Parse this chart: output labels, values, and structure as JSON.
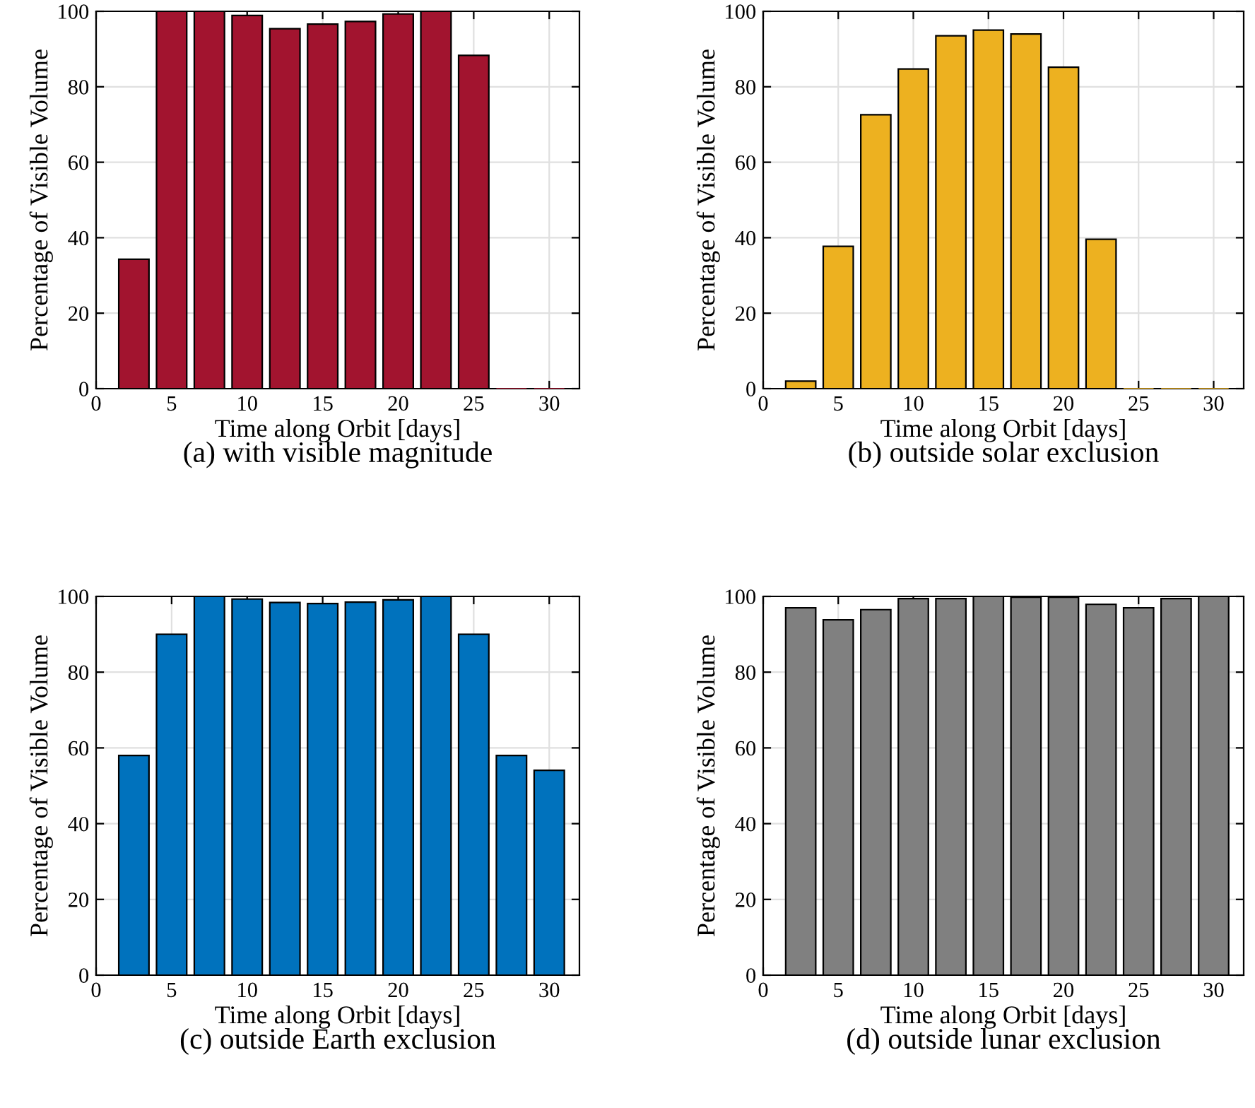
{
  "chart_data": [
    {
      "type": "bar",
      "x": [
        2.5,
        5,
        7.5,
        10,
        12.5,
        15,
        17.5,
        20,
        22.5,
        25,
        27.5,
        30
      ],
      "values": [
        34.3,
        100,
        100,
        98.9,
        95.4,
        96.6,
        97.3,
        99.3,
        100,
        88.3,
        0,
        0
      ],
      "color": "#a2142f",
      "xlabel": "Time along Orbit [days]",
      "ylabel": "Percentage of Visible Volume",
      "xlim": [
        0,
        32
      ],
      "ylim": [
        0,
        100
      ],
      "xticks": [
        0,
        5,
        10,
        15,
        20,
        25,
        30
      ],
      "yticks": [
        0,
        20,
        40,
        60,
        80,
        100
      ],
      "grid": true,
      "annotations": [
        "(a) with visible magnitude"
      ]
    },
    {
      "type": "bar",
      "x": [
        2.5,
        5,
        7.5,
        10,
        12.5,
        15,
        17.5,
        20,
        22.5,
        25,
        27.5,
        30
      ],
      "values": [
        2.0,
        37.7,
        72.6,
        84.7,
        93.5,
        95.0,
        94.0,
        85.2,
        39.6,
        0,
        0,
        0
      ],
      "color": "#edb120",
      "xlabel": "Time along Orbit [days]",
      "ylabel": "Percentage of Visible Volume",
      "xlim": [
        0,
        32
      ],
      "ylim": [
        0,
        100
      ],
      "xticks": [
        0,
        5,
        10,
        15,
        20,
        25,
        30
      ],
      "yticks": [
        0,
        20,
        40,
        60,
        80,
        100
      ],
      "grid": true,
      "annotations": [
        "(b) outside solar exclusion"
      ]
    },
    {
      "type": "bar",
      "x": [
        2.5,
        5,
        7.5,
        10,
        12.5,
        15,
        17.5,
        20,
        22.5,
        25,
        27.5,
        30
      ],
      "values": [
        58,
        90,
        100,
        99.3,
        98.4,
        98.1,
        98.5,
        99.1,
        100,
        90,
        58,
        54.1
      ],
      "color": "#0072bd",
      "xlabel": "Time along Orbit [days]",
      "ylabel": "Percentage of Visible Volume",
      "xlim": [
        0,
        32
      ],
      "ylim": [
        0,
        100
      ],
      "xticks": [
        0,
        5,
        10,
        15,
        20,
        25,
        30
      ],
      "yticks": [
        0,
        20,
        40,
        60,
        80,
        100
      ],
      "grid": true,
      "annotations": [
        "(c) outside Earth exclusion"
      ]
    },
    {
      "type": "bar",
      "x": [
        2.5,
        5,
        7.5,
        10,
        12.5,
        15,
        17.5,
        20,
        22.5,
        25,
        27.5,
        30
      ],
      "values": [
        97.0,
        93.8,
        96.5,
        99.4,
        99.4,
        100,
        99.8,
        99.8,
        97.9,
        97.0,
        99.4,
        100
      ],
      "color": "#808080",
      "xlabel": "Time along Orbit [days]",
      "ylabel": "Percentage of Visible Volume",
      "xlim": [
        0,
        32
      ],
      "ylim": [
        0,
        100
      ],
      "xticks": [
        0,
        5,
        10,
        15,
        20,
        25,
        30
      ],
      "yticks": [
        0,
        20,
        40,
        60,
        80,
        100
      ],
      "grid": true,
      "annotations": [
        "(d) outside lunar exclusion"
      ]
    }
  ]
}
